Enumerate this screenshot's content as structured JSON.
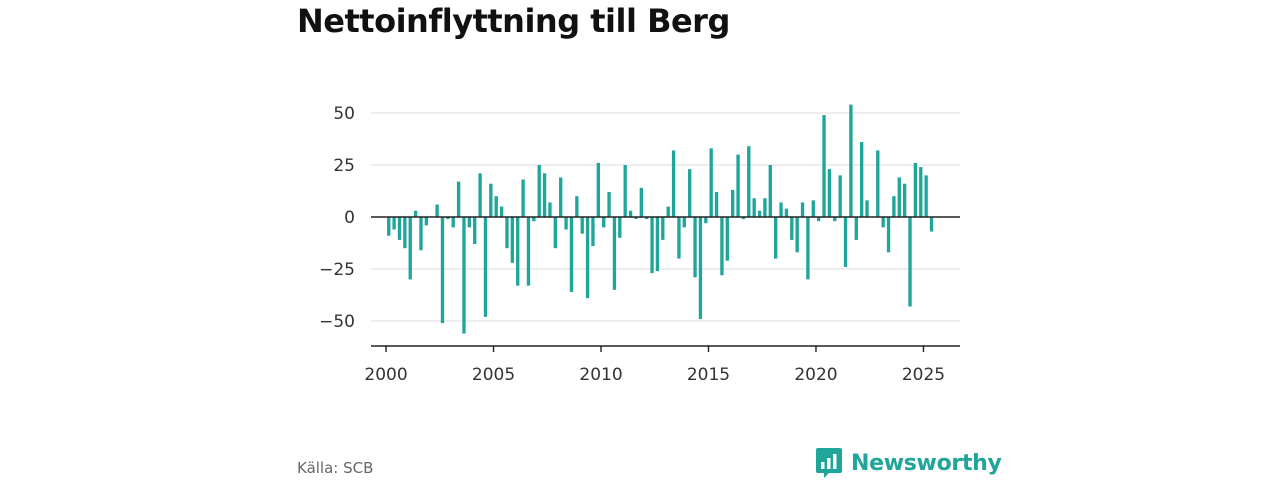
{
  "title": "Nettoinflyttning till Berg",
  "source": "Källa: SCB",
  "brand": "Newsworthy",
  "colors": {
    "bar": "#1fa59a",
    "grid": "#dddddd",
    "axis": "#222222",
    "brand": "#1fa59a"
  },
  "chart_data": {
    "type": "bar",
    "title": "Nettoinflyttning till Berg",
    "xlabel": "",
    "ylabel": "",
    "ylim": [
      -62,
      62
    ],
    "xlim": [
      1999.3,
      2026.7
    ],
    "x_ticks": [
      2000,
      2005,
      2010,
      2015,
      2020,
      2025
    ],
    "y_ticks": [
      50,
      25,
      0,
      -25,
      -50
    ],
    "y_tick_labels": [
      "50",
      "25",
      "0",
      "−25",
      "−50"
    ],
    "grid": true,
    "x": [
      2000.125,
      2000.375,
      2000.625,
      2000.875,
      2001.125,
      2001.375,
      2001.625,
      2001.875,
      2002.125,
      2002.375,
      2002.625,
      2002.875,
      2003.125,
      2003.375,
      2003.625,
      2003.875,
      2004.125,
      2004.375,
      2004.625,
      2004.875,
      2005.125,
      2005.375,
      2005.625,
      2005.875,
      2006.125,
      2006.375,
      2006.625,
      2006.875,
      2007.125,
      2007.375,
      2007.625,
      2007.875,
      2008.125,
      2008.375,
      2008.625,
      2008.875,
      2009.125,
      2009.375,
      2009.625,
      2009.875,
      2010.125,
      2010.375,
      2010.625,
      2010.875,
      2011.125,
      2011.375,
      2011.625,
      2011.875,
      2012.125,
      2012.375,
      2012.625,
      2012.875,
      2013.125,
      2013.375,
      2013.625,
      2013.875,
      2014.125,
      2014.375,
      2014.625,
      2014.875,
      2015.125,
      2015.375,
      2015.625,
      2015.875,
      2016.125,
      2016.375,
      2016.625,
      2016.875,
      2017.125,
      2017.375,
      2017.625,
      2017.875,
      2018.125,
      2018.375,
      2018.625,
      2018.875,
      2019.125,
      2019.375,
      2019.625,
      2019.875,
      2020.125,
      2020.375,
      2020.625,
      2020.875,
      2021.125,
      2021.375,
      2021.625,
      2021.875,
      2022.125,
      2022.375,
      2022.625,
      2022.875,
      2023.125,
      2023.375,
      2023.625,
      2023.875,
      2024.125,
      2024.375,
      2024.625,
      2024.875,
      2025.125,
      2025.375
    ],
    "values": [
      -9,
      -6,
      -11,
      -15,
      -30,
      3,
      -16,
      -4,
      0,
      6,
      -51,
      -1,
      -5,
      17,
      -56,
      -5,
      -13,
      21,
      -48,
      16,
      10,
      5,
      -15,
      -22,
      -33,
      18,
      -33,
      -2,
      25,
      21,
      7,
      -15,
      19,
      -6,
      -36,
      10,
      -8,
      -39,
      -14,
      26,
      -5,
      12,
      -35,
      -10,
      25,
      3,
      -1,
      14,
      -1,
      -27,
      -26,
      -11,
      5,
      32,
      -20,
      -5,
      23,
      -29,
      -49,
      -3,
      33,
      12,
      -28,
      -21,
      13,
      30,
      -1,
      34,
      9,
      3,
      9,
      25,
      -20,
      7,
      4,
      -11,
      -17,
      7,
      -30,
      8,
      -2,
      49,
      23,
      -2,
      20,
      -24,
      54,
      -11,
      36,
      8,
      0,
      32,
      -5,
      -17,
      10,
      19,
      16,
      -43,
      26,
      24,
      20,
      -7
    ]
  }
}
